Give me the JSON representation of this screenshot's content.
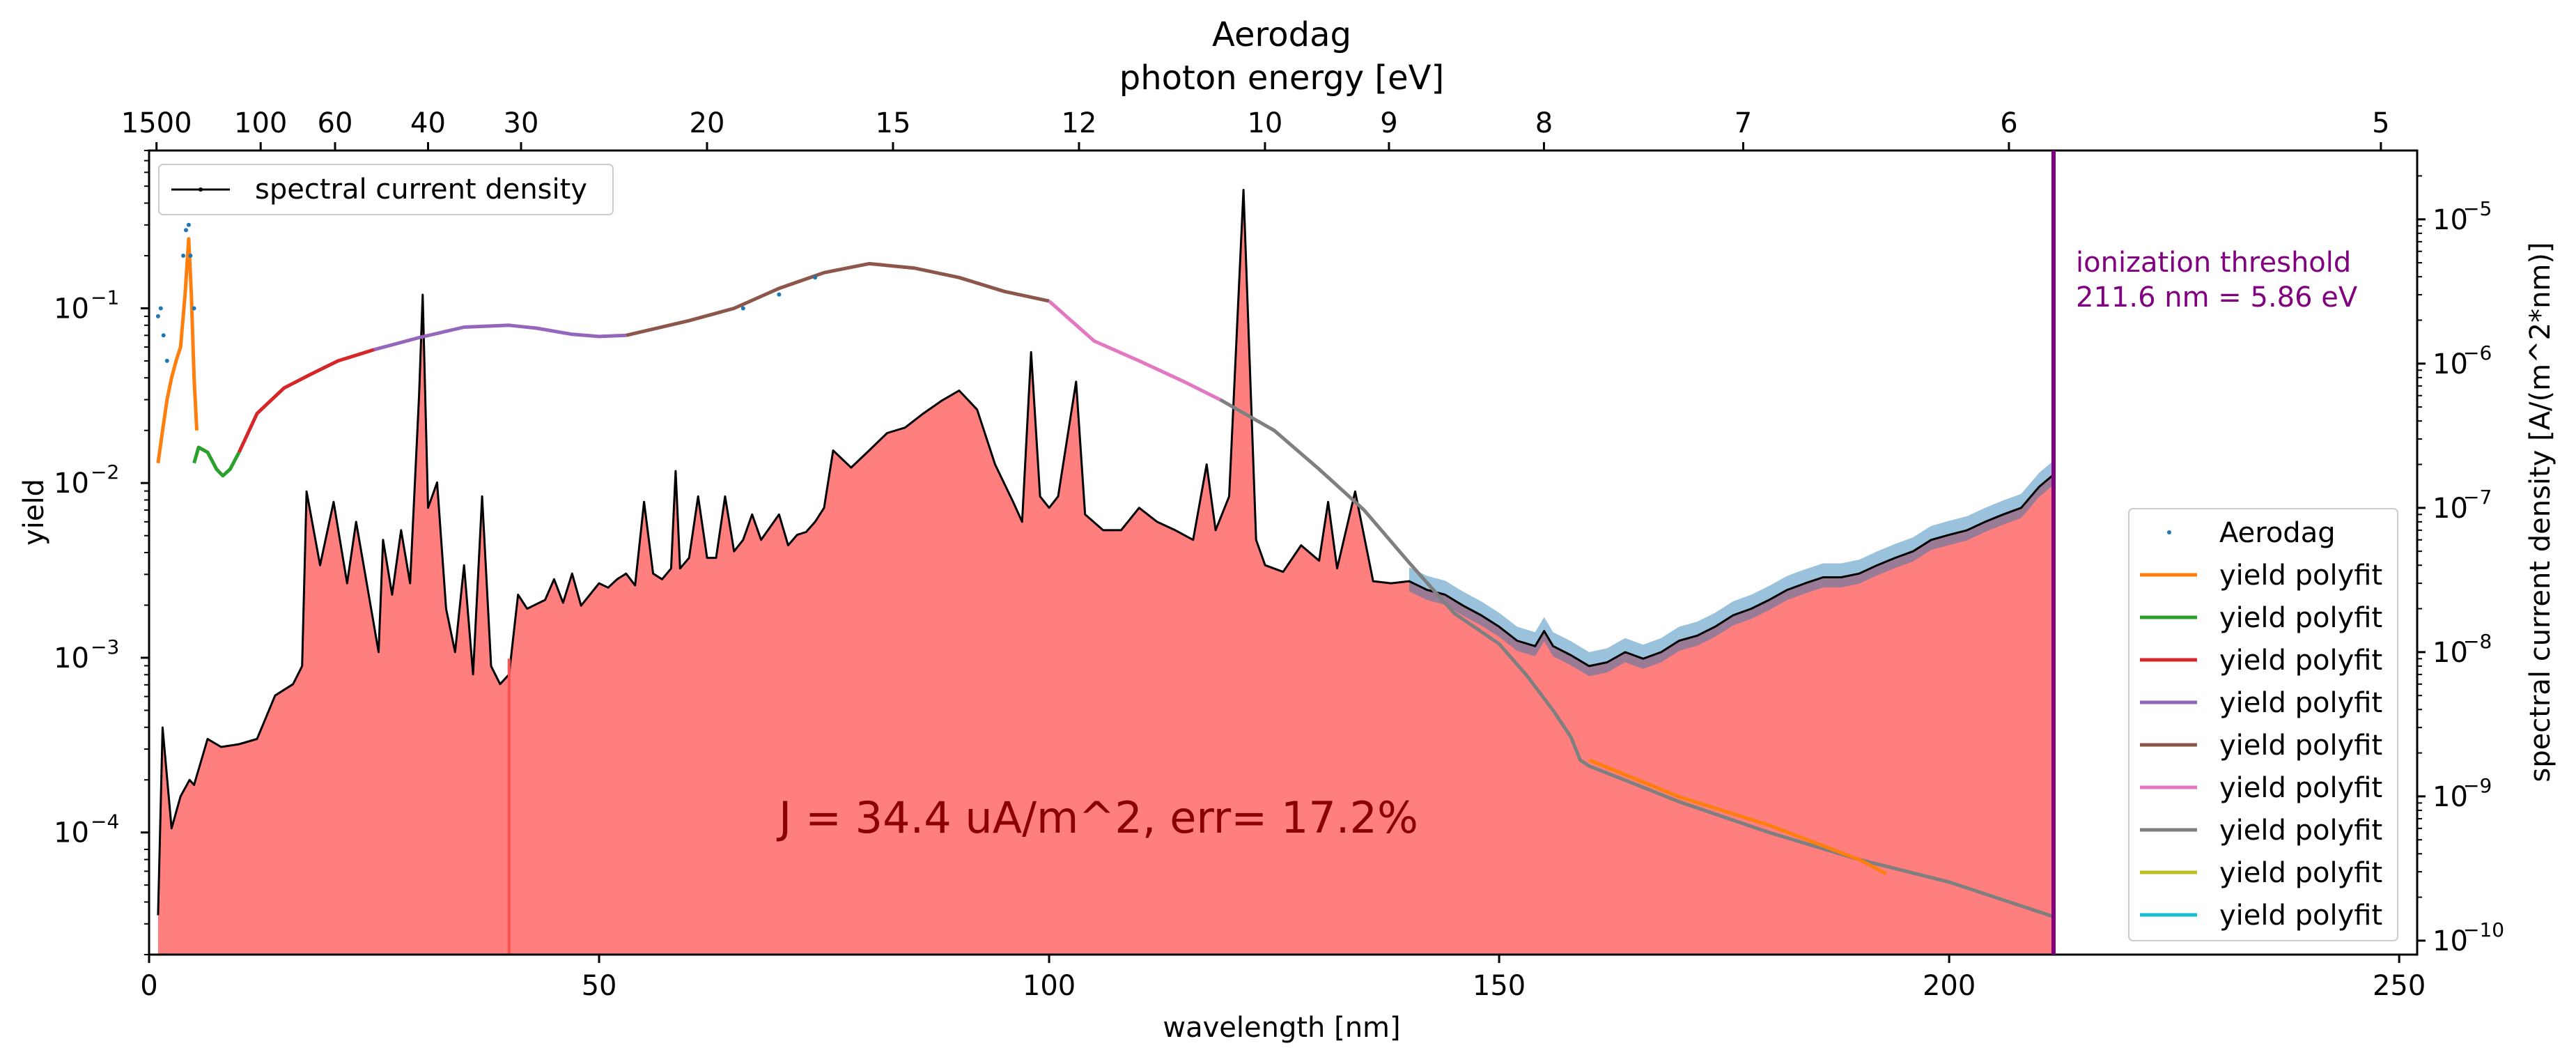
{
  "chart_data": {
    "type": "line",
    "title": "Aerodag",
    "top_axis_label": "photon energy [eV]",
    "xlabel": "wavelength [nm]",
    "ylabel_left": "yield",
    "ylabel_right": "spectral current density [A/(m^2*nm)]",
    "xlim": [
      0,
      252
    ],
    "ylim_left": [
      2e-05,
      0.8
    ],
    "ylim_right": [
      8e-11,
      3e-05
    ],
    "y_scale": "log",
    "x_ticks": [
      0,
      50,
      100,
      150,
      200,
      250
    ],
    "x_tick_labels": [
      "0",
      "50",
      "100",
      "150",
      "200",
      "250"
    ],
    "top_ticks_eV": [
      1500,
      100,
      60,
      40,
      30,
      20,
      15,
      12,
      10,
      9,
      8,
      7,
      6,
      5
    ],
    "top_tick_labels": [
      "1500",
      "100",
      "60",
      "40",
      "30",
      "20",
      "15",
      "12",
      "10",
      "9",
      "8",
      "7",
      "6",
      "5"
    ],
    "left_tick_exponents": [
      -4,
      -3,
      -2,
      -1
    ],
    "left_tick_labels": [
      "10",
      "10",
      "10",
      "10"
    ],
    "left_tick_superscripts": [
      "−4",
      "−3",
      "−2",
      "−1"
    ],
    "right_tick_exponents": [
      -10,
      -9,
      -8,
      -7,
      -6,
      -5
    ],
    "right_tick_labels": [
      "10",
      "10",
      "10",
      "10",
      "10",
      "10"
    ],
    "right_tick_superscripts": [
      "−10",
      "−9",
      "−8",
      "−7",
      "−6",
      "−5"
    ],
    "legend_upper_left": {
      "position": "top-left",
      "entries": [
        "spectral current density"
      ]
    },
    "legend_lower_right": {
      "position": "bottom-right",
      "entries": [
        {
          "label": "Aerodag",
          "color": "#1f77b4",
          "kind": "marker"
        },
        {
          "label": "yield polyfit",
          "color": "#ff7f0e",
          "kind": "line"
        },
        {
          "label": "yield polyfit",
          "color": "#2ca02c",
          "kind": "line"
        },
        {
          "label": "yield polyfit",
          "color": "#d62728",
          "kind": "line"
        },
        {
          "label": "yield polyfit",
          "color": "#9467bd",
          "kind": "line"
        },
        {
          "label": "yield polyfit",
          "color": "#8c564b",
          "kind": "line"
        },
        {
          "label": "yield polyfit",
          "color": "#e377c2",
          "kind": "line"
        },
        {
          "label": "yield polyfit",
          "color": "#7f7f7f",
          "kind": "line"
        },
        {
          "label": "yield polyfit",
          "color": "#bcbd22",
          "kind": "line"
        },
        {
          "label": "yield polyfit",
          "color": "#17becf",
          "kind": "line"
        }
      ]
    },
    "annotation_threshold": {
      "line1": "ionization threshold",
      "line2": "211.6 nm = 5.86 eV",
      "wavelength": 211.6,
      "color": "#800080"
    },
    "annotation_current": {
      "text": "J = 34.4 uA/m^2, err= 17.2%",
      "color": "#8b0000"
    },
    "yield_fits": [
      {
        "color": "#ff7f0e",
        "points": [
          [
            1.0,
            0.013
          ],
          [
            1.5,
            0.02
          ],
          [
            2.0,
            0.03
          ],
          [
            2.5,
            0.04
          ],
          [
            3.0,
            0.05
          ],
          [
            3.5,
            0.06
          ],
          [
            4.0,
            0.12
          ],
          [
            4.4,
            0.25
          ],
          [
            4.7,
            0.12
          ],
          [
            5.0,
            0.04
          ],
          [
            5.3,
            0.02
          ]
        ]
      },
      {
        "color": "#2ca02c",
        "points": [
          [
            5.0,
            0.013
          ],
          [
            5.5,
            0.016
          ],
          [
            6.5,
            0.015
          ],
          [
            7.5,
            0.012
          ],
          [
            8.2,
            0.011
          ],
          [
            9.0,
            0.012
          ],
          [
            10.0,
            0.015
          ]
        ]
      },
      {
        "color": "#d62728",
        "points": [
          [
            10.0,
            0.015
          ],
          [
            12.0,
            0.025
          ],
          [
            15.0,
            0.035
          ],
          [
            18.0,
            0.042
          ],
          [
            21.0,
            0.05
          ],
          [
            25.0,
            0.058
          ]
        ]
      },
      {
        "color": "#9467bd",
        "points": [
          [
            25.0,
            0.058
          ],
          [
            30.0,
            0.068
          ],
          [
            35.0,
            0.078
          ],
          [
            40.0,
            0.08
          ],
          [
            43.0,
            0.077
          ],
          [
            47.0,
            0.071
          ],
          [
            50.0,
            0.069
          ],
          [
            53.0,
            0.07
          ]
        ]
      },
      {
        "color": "#8c564b",
        "points": [
          [
            53.0,
            0.07
          ],
          [
            60.0,
            0.085
          ],
          [
            65.0,
            0.1
          ],
          [
            70.0,
            0.13
          ],
          [
            75.0,
            0.16
          ],
          [
            80.0,
            0.18
          ],
          [
            85.0,
            0.17
          ],
          [
            90.0,
            0.15
          ],
          [
            95.0,
            0.125
          ],
          [
            100.0,
            0.11
          ]
        ]
      },
      {
        "color": "#e377c2",
        "points": [
          [
            100.0,
            0.11
          ],
          [
            105.0,
            0.065
          ],
          [
            110.0,
            0.05
          ],
          [
            115.0,
            0.038
          ],
          [
            119.0,
            0.03
          ]
        ]
      },
      {
        "color": "#7f7f7f",
        "points": [
          [
            119.0,
            0.03
          ],
          [
            125.0,
            0.02
          ],
          [
            130.0,
            0.012
          ],
          [
            135.0,
            0.007
          ],
          [
            140.0,
            0.0035
          ],
          [
            145.0,
            0.0018
          ],
          [
            150.0,
            0.0012
          ],
          [
            153.0,
            0.0008
          ],
          [
            156.0,
            0.0005
          ],
          [
            158.0,
            0.00035
          ],
          [
            159.0,
            0.00026
          ],
          [
            160.0,
            0.00024
          ],
          [
            165.0,
            0.00019
          ],
          [
            170.0,
            0.00015
          ],
          [
            180.0,
            0.0001
          ],
          [
            190.0,
            7e-05
          ],
          [
            200.0,
            5.2e-05
          ],
          [
            211.6,
            3.3e-05
          ]
        ]
      },
      {
        "color": "#ff7f0e",
        "points": [
          [
            160.0,
            0.00026
          ],
          [
            170.0,
            0.00016
          ],
          [
            180.0,
            0.00011
          ],
          [
            190.0,
            7e-05
          ],
          [
            193.0,
            5.8e-05
          ]
        ]
      }
    ],
    "measured_yield_points": [
      [
        1.0,
        0.09
      ],
      [
        1.3,
        0.1
      ],
      [
        1.6,
        0.07
      ],
      [
        2.0,
        0.05
      ],
      [
        3.8,
        0.2
      ],
      [
        4.1,
        0.28
      ],
      [
        4.4,
        0.3
      ],
      [
        4.6,
        0.2
      ],
      [
        5.0,
        0.1
      ],
      [
        66.0,
        0.1
      ],
      [
        70.0,
        0.12
      ],
      [
        74.0,
        0.15
      ]
    ],
    "spectral_current_density": [
      [
        1.0,
        1.5e-10
      ],
      [
        1.5,
        3e-09
      ],
      [
        2.5,
        6e-10
      ],
      [
        3.5,
        1e-09
      ],
      [
        4.5,
        1.3e-09
      ],
      [
        5.0,
        1.2e-09
      ],
      [
        6.5,
        2.5e-09
      ],
      [
        8.0,
        2.2e-09
      ],
      [
        10.0,
        2.3e-09
      ],
      [
        12.0,
        2.5e-09
      ],
      [
        14.0,
        5e-09
      ],
      [
        16.0,
        6e-09
      ],
      [
        17.0,
        8e-09
      ],
      [
        17.5,
        1.3e-07
      ],
      [
        19.0,
        4e-08
      ],
      [
        20.5,
        1.1e-07
      ],
      [
        22.0,
        3e-08
      ],
      [
        23.0,
        8e-08
      ],
      [
        24.0,
        3.5e-08
      ],
      [
        25.5,
        1e-08
      ],
      [
        26.0,
        6e-08
      ],
      [
        27.0,
        2.5e-08
      ],
      [
        28.0,
        7e-08
      ],
      [
        29.0,
        3e-08
      ],
      [
        30.0,
        6e-07
      ],
      [
        30.4,
        3e-06
      ],
      [
        31.0,
        1e-07
      ],
      [
        32.0,
        1.5e-07
      ],
      [
        33.0,
        2e-08
      ],
      [
        34.0,
        1e-08
      ],
      [
        35.0,
        4e-08
      ],
      [
        36.0,
        7e-09
      ],
      [
        37.0,
        1.2e-07
      ],
      [
        38.0,
        8e-09
      ],
      [
        39.0,
        6e-09
      ],
      [
        40.0,
        7e-09
      ],
      [
        41.0,
        2.5e-08
      ],
      [
        42.0,
        2e-08
      ],
      [
        44.0,
        2.3e-08
      ],
      [
        45.0,
        3.2e-08
      ],
      [
        46.0,
        2.2e-08
      ],
      [
        47.0,
        3.5e-08
      ],
      [
        48.0,
        2.1e-08
      ],
      [
        50.0,
        3e-08
      ],
      [
        51.0,
        2.8e-08
      ],
      [
        52.0,
        3.2e-08
      ],
      [
        53.0,
        3.5e-08
      ],
      [
        54.0,
        2.9e-08
      ],
      [
        55.0,
        1.1e-07
      ],
      [
        56.0,
        3.5e-08
      ],
      [
        57.0,
        3.2e-08
      ],
      [
        58.0,
        3.8e-08
      ],
      [
        58.5,
        1.8e-07
      ],
      [
        59.0,
        3.8e-08
      ],
      [
        60.0,
        4.5e-08
      ],
      [
        61.0,
        1.2e-07
      ],
      [
        62.0,
        4.5e-08
      ],
      [
        63.0,
        4.5e-08
      ],
      [
        64.0,
        1.2e-07
      ],
      [
        65.0,
        5e-08
      ],
      [
        66.0,
        6e-08
      ],
      [
        67.0,
        9e-08
      ],
      [
        68.0,
        6e-08
      ],
      [
        70.0,
        9e-08
      ],
      [
        71.0,
        5.5e-08
      ],
      [
        72.0,
        6.5e-08
      ],
      [
        73.0,
        6.8e-08
      ],
      [
        74.0,
        8e-08
      ],
      [
        75.0,
        1e-07
      ],
      [
        76.0,
        2.5e-07
      ],
      [
        78.0,
        1.9e-07
      ],
      [
        80.0,
        2.5e-07
      ],
      [
        82.0,
        3.3e-07
      ],
      [
        84.0,
        3.6e-07
      ],
      [
        86.0,
        4.5e-07
      ],
      [
        88.0,
        5.5e-07
      ],
      [
        90.0,
        6.5e-07
      ],
      [
        92.0,
        4.8e-07
      ],
      [
        94.0,
        2e-07
      ],
      [
        96.0,
        1.1e-07
      ],
      [
        97.0,
        8e-08
      ],
      [
        98.0,
        1.2e-06
      ],
      [
        99.0,
        1.2e-07
      ],
      [
        100.0,
        1e-07
      ],
      [
        101.0,
        1.2e-07
      ],
      [
        103.0,
        7.5e-07
      ],
      [
        104.0,
        9e-08
      ],
      [
        106.0,
        7e-08
      ],
      [
        108.0,
        7e-08
      ],
      [
        110.0,
        1e-07
      ],
      [
        112.0,
        8e-08
      ],
      [
        114.0,
        7e-08
      ],
      [
        116.0,
        6e-08
      ],
      [
        117.5,
        2e-07
      ],
      [
        118.5,
        7e-08
      ],
      [
        120.0,
        1.2e-07
      ],
      [
        121.6,
        1.6e-05
      ],
      [
        123.0,
        6e-08
      ],
      [
        124.0,
        4e-08
      ],
      [
        126.0,
        3.6e-08
      ],
      [
        128.0,
        5.5e-08
      ],
      [
        130.0,
        4.3e-08
      ],
      [
        131.0,
        1.1e-07
      ],
      [
        132.0,
        3.8e-08
      ],
      [
        134.0,
        1.3e-07
      ],
      [
        136.0,
        3.1e-08
      ],
      [
        138.0,
        3e-08
      ],
      [
        140.0,
        3.1e-08
      ],
      [
        142.0,
        2.7e-08
      ],
      [
        144.0,
        2.5e-08
      ],
      [
        146.0,
        2.1e-08
      ],
      [
        148.0,
        1.8e-08
      ],
      [
        150.0,
        1.5e-08
      ],
      [
        152.0,
        1.2e-08
      ],
      [
        154.0,
        1.1e-08
      ],
      [
        155.0,
        1.4e-08
      ],
      [
        156.0,
        1.1e-08
      ],
      [
        158.0,
        9.5e-09
      ],
      [
        160.0,
        8e-09
      ],
      [
        162.0,
        8.5e-09
      ],
      [
        164.0,
        1e-08
      ],
      [
        166.0,
        9e-09
      ],
      [
        168.0,
        1e-08
      ],
      [
        170.0,
        1.2e-08
      ],
      [
        172.0,
        1.3e-08
      ],
      [
        174.0,
        1.5e-08
      ],
      [
        176.0,
        1.8e-08
      ],
      [
        178.0,
        2e-08
      ],
      [
        180.0,
        2.3e-08
      ],
      [
        182.0,
        2.7e-08
      ],
      [
        184.0,
        3e-08
      ],
      [
        186.0,
        3.3e-08
      ],
      [
        188.0,
        3.3e-08
      ],
      [
        190.0,
        3.5e-08
      ],
      [
        192.0,
        4e-08
      ],
      [
        194.0,
        4.5e-08
      ],
      [
        196.0,
        5e-08
      ],
      [
        198.0,
        6e-08
      ],
      [
        200.0,
        6.5e-08
      ],
      [
        202.0,
        7e-08
      ],
      [
        204.0,
        8e-08
      ],
      [
        206.0,
        9e-08
      ],
      [
        208.0,
        1e-07
      ],
      [
        210.0,
        1.4e-07
      ],
      [
        211.6,
        1.7e-07
      ]
    ]
  }
}
